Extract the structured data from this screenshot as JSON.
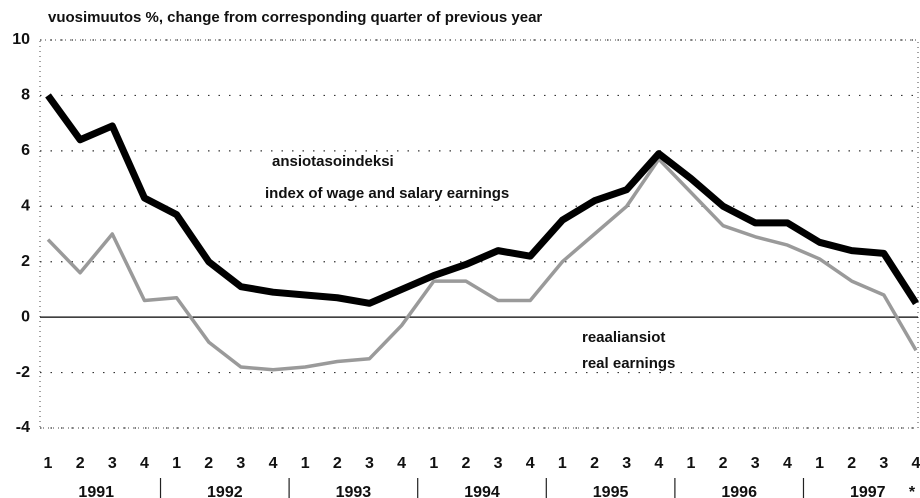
{
  "chart_data": {
    "type": "line",
    "title": "vuosimuutos %, change from corresponding quarter of previous year",
    "categories": [
      "1",
      "2",
      "3",
      "4",
      "1",
      "2",
      "3",
      "4",
      "1",
      "2",
      "3",
      "4",
      "1",
      "2",
      "3",
      "4",
      "1",
      "2",
      "3",
      "4",
      "1",
      "2",
      "3",
      "4",
      "1",
      "2",
      "3",
      "4"
    ],
    "years": [
      "1991",
      "1992",
      "1993",
      "1994",
      "1995",
      "1996",
      "1997"
    ],
    "footnote": "*",
    "series": [
      {
        "name": "ansiotasoindeksi",
        "name_en": "index of wage and salary earnings",
        "color": "#000000",
        "values": [
          8.0,
          6.4,
          6.9,
          4.3,
          3.7,
          2.0,
          1.1,
          0.9,
          0.8,
          0.7,
          0.5,
          1.0,
          1.5,
          1.9,
          2.4,
          2.2,
          3.5,
          4.2,
          4.6,
          5.9,
          5.0,
          4.0,
          3.4,
          3.4,
          2.7,
          2.4,
          2.3,
          0.5
        ]
      },
      {
        "name": "reaaliansiot",
        "name_en": "real earnings",
        "color": "#9a9a9a",
        "values": [
          2.8,
          1.6,
          3.0,
          0.6,
          0.7,
          -0.9,
          -1.8,
          -1.9,
          -1.8,
          -1.6,
          -1.5,
          -0.3,
          1.3,
          1.3,
          0.6,
          0.6,
          2.0,
          3.0,
          4.0,
          5.7,
          4.5,
          3.3,
          2.9,
          2.6,
          2.1,
          1.3,
          0.8,
          -1.2
        ]
      }
    ],
    "ylim": [
      -4,
      10
    ],
    "yticks": [
      -4,
      -2,
      0,
      2,
      4,
      6,
      8,
      10
    ],
    "grid": true
  }
}
